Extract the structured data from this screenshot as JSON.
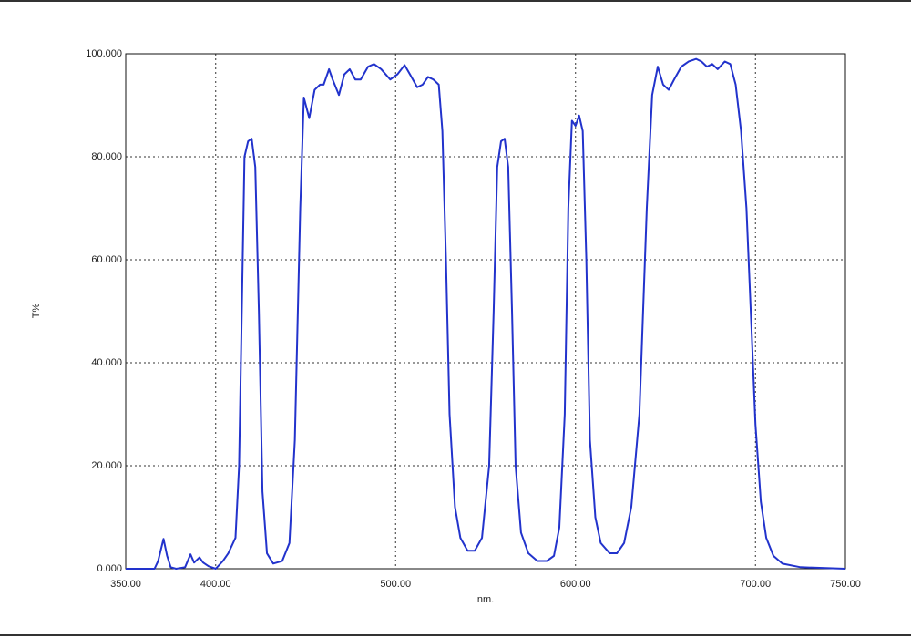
{
  "chart_data": {
    "type": "line",
    "xlabel": "nm.",
    "ylabel": "T%",
    "x": [
      350,
      360,
      366,
      368,
      371,
      373,
      375,
      378,
      383,
      386,
      388,
      391,
      393,
      396,
      400,
      404,
      407,
      411,
      413,
      414,
      416,
      418,
      420,
      422,
      424,
      426,
      428.5,
      432,
      437,
      441,
      444,
      447,
      449,
      452,
      455,
      458,
      460,
      463,
      465,
      468.5,
      471.5,
      474.5,
      477.6,
      480.6,
      484.7,
      488,
      492,
      497,
      501,
      505,
      508,
      512,
      515,
      518,
      521,
      524,
      526,
      528,
      530,
      533,
      536,
      540,
      544,
      548,
      552,
      554.5,
      556.5,
      558.6,
      560.6,
      562.6,
      564.7,
      566.7,
      569.7,
      573.8,
      578.8,
      584,
      588,
      591,
      594,
      596,
      598,
      600,
      602,
      604,
      606,
      608,
      611,
      614,
      619,
      623,
      627,
      631,
      635.5,
      639.6,
      642.6,
      645.7,
      648.7,
      651.8,
      654.8,
      658.8,
      662.9,
      667,
      670,
      673,
      676,
      679,
      683,
      686,
      689,
      692,
      695,
      698,
      700,
      703,
      706,
      710,
      715,
      725,
      750
    ],
    "series": [
      {
        "color": "#2233cc",
        "values": [
          0,
          0,
          0,
          1.5,
          5.8,
          2.5,
          0.3,
          0,
          0.3,
          2.8,
          1.2,
          2.2,
          1.2,
          0.5,
          0,
          1.5,
          3,
          6,
          20,
          40,
          80,
          83,
          83.5,
          78,
          50,
          15,
          3,
          1,
          1.5,
          5,
          25,
          70,
          91.5,
          87.5,
          93,
          94,
          94,
          97,
          95,
          92,
          96,
          97,
          95,
          95,
          97.5,
          98,
          97,
          95,
          96,
          97.8,
          96,
          93.5,
          94,
          95.5,
          95,
          94,
          85,
          60,
          30,
          12,
          6,
          3.5,
          3.5,
          6,
          20,
          50,
          78,
          83,
          83.5,
          78,
          50,
          20,
          7,
          3,
          1.5,
          1.5,
          2.5,
          8,
          30,
          70,
          87,
          86,
          88,
          85,
          60,
          25,
          10,
          5,
          3,
          3,
          5,
          12,
          30,
          70,
          92,
          97.5,
          94,
          93,
          95,
          97.5,
          98.5,
          99,
          98.5,
          97.5,
          98,
          97,
          98.5,
          98,
          94,
          85,
          70,
          45,
          28,
          13,
          6,
          2.5,
          1,
          0.3,
          0
        ]
      }
    ],
    "xlim": [
      350,
      750
    ],
    "xticks": [
      {
        "value": 350,
        "label": "350.00"
      },
      {
        "value": 400,
        "label": "400.00"
      },
      {
        "value": 500,
        "label": "500.00"
      },
      {
        "value": 600,
        "label": "600.00"
      },
      {
        "value": 700,
        "label": "700.00"
      },
      {
        "value": 750,
        "label": "750.00"
      }
    ],
    "ylim": [
      0,
      100
    ],
    "yticks": [
      {
        "value": 0,
        "label": "0.000"
      },
      {
        "value": 20,
        "label": "20.000"
      },
      {
        "value": 40,
        "label": "40.000"
      },
      {
        "value": 60,
        "label": "60.000"
      },
      {
        "value": 80,
        "label": "80.000"
      },
      {
        "value": 100,
        "label": "100.000"
      }
    ],
    "grid": true
  }
}
